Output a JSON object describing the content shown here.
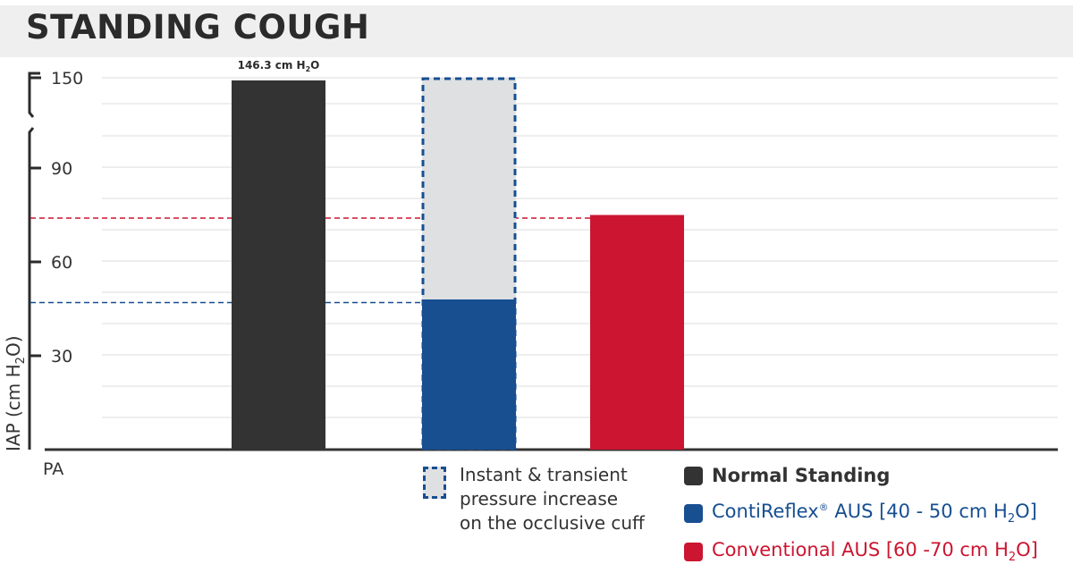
{
  "title": "STANDING COUGH",
  "chart_data": {
    "type": "bar",
    "title": "STANDING COUGH",
    "ylabel": "IAP (cm H2O)",
    "xlabel": "PA",
    "y_ticks": [
      "30",
      "60",
      "90",
      "150"
    ],
    "y_axis_broken": true,
    "ylim_lower_segment": [
      0,
      103
    ],
    "ylim_upper_segment": [
      150
    ],
    "series": [
      {
        "name": "Normal Standing",
        "value": 146.3,
        "color": "#333333",
        "data_label": "146.3 cm",
        "data_label_suffix": "H2O"
      },
      {
        "name": "ContiReflex® AUS [40 - 50 cm H2O]",
        "value": 48,
        "color": "#174f91",
        "transient_max": 150,
        "transient_color": "#dfe0e2"
      },
      {
        "name": "Conventional AUS [60 -70 cm H2O]",
        "value": 75,
        "color": "#cc1530"
      }
    ],
    "reference_lines": [
      {
        "value": 74,
        "color": "#cc1530",
        "style": "dashed"
      },
      {
        "value": 47,
        "color": "#174f91",
        "style": "dashed"
      }
    ],
    "grid": true
  },
  "legend": {
    "transient_note": [
      "Instant & transient",
      "pressure increase",
      "on the occlusive cuff"
    ],
    "items": [
      {
        "label": "Normal Standing",
        "color": "#333333",
        "weight": "bold"
      },
      {
        "label_main": "ContiReflex",
        "label_sup": "®",
        "label_rest": " AUS [40 - 50 cm H",
        "label_sub": "2",
        "label_end": "O]",
        "color": "#174f91"
      },
      {
        "label_main": "Conventional AUS [60 -70 cm H",
        "label_sub": "2",
        "label_end": "O]",
        "color": "#cc1530"
      }
    ]
  }
}
